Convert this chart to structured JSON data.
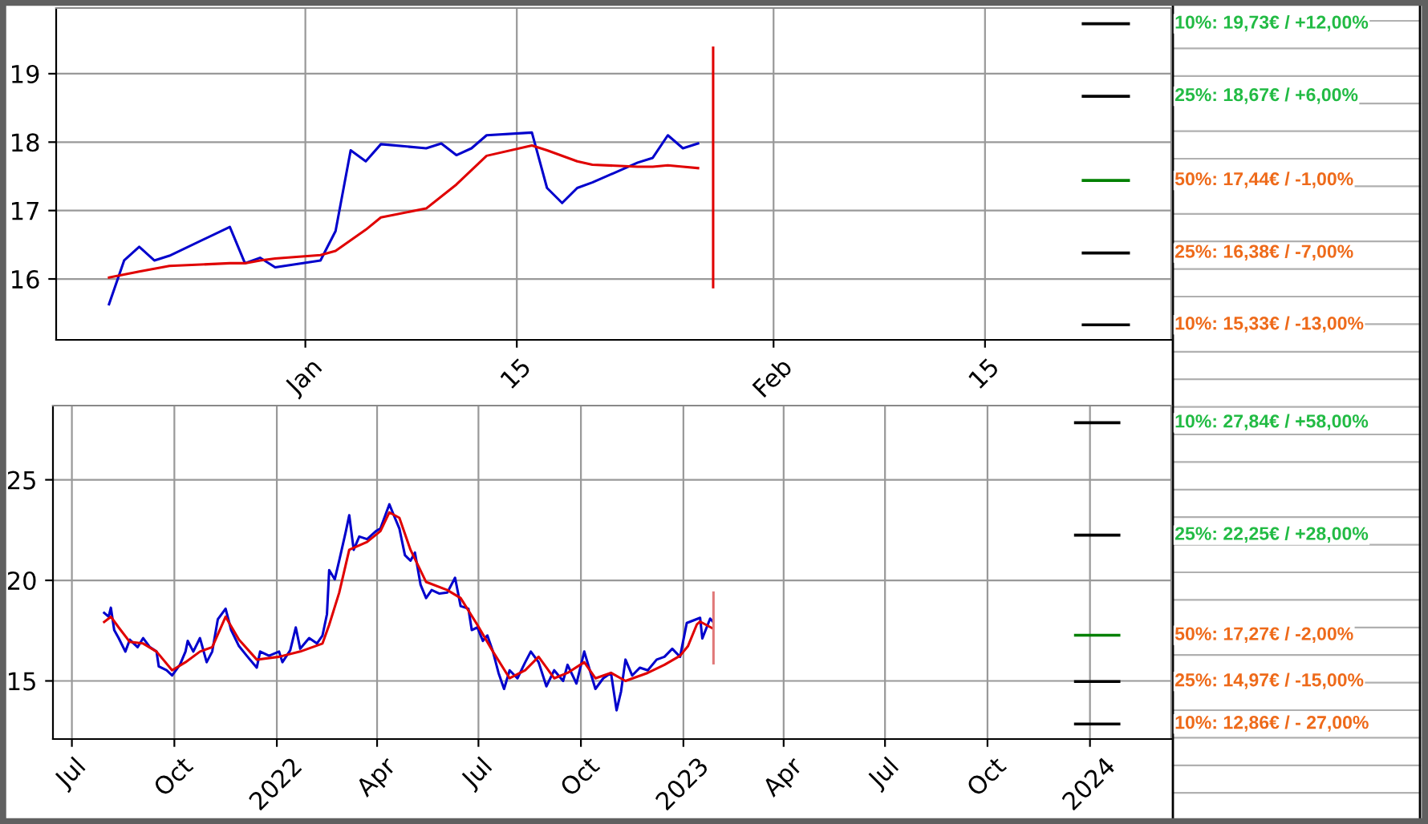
{
  "chart_data": [
    {
      "type": "line",
      "grid": true,
      "xlim": [
        "2022-12-15T12:00",
        "2023-02-27T08:00"
      ],
      "ylim": [
        15.11,
        19.96
      ],
      "yticks": [
        16,
        17,
        18,
        19
      ],
      "xticks": [
        {
          "value": "2023-01-01",
          "label": "Jan"
        },
        {
          "value": "2023-01-15",
          "label": "15"
        },
        {
          "value": "2023-02-01",
          "label": "Feb"
        },
        {
          "value": "2023-02-15",
          "label": "15"
        }
      ],
      "series": [
        {
          "color": "#0000cc",
          "x": [
            "2022-12-19",
            "2022-12-20",
            "2022-12-21",
            "2022-12-22",
            "2022-12-23",
            "2022-12-27",
            "2022-12-28",
            "2022-12-29",
            "2022-12-30",
            "2023-01-02",
            "2023-01-03",
            "2023-01-04",
            "2023-01-05",
            "2023-01-06",
            "2023-01-09",
            "2023-01-10",
            "2023-01-11",
            "2023-01-12",
            "2023-01-13",
            "2023-01-16",
            "2023-01-17",
            "2023-01-18",
            "2023-01-19",
            "2023-01-20",
            "2023-01-23",
            "2023-01-24",
            "2023-01-25",
            "2023-01-26",
            "2023-01-27"
          ],
          "values": [
            15.63,
            16.27,
            16.47,
            16.27,
            16.34,
            16.76,
            16.23,
            16.31,
            16.17,
            16.27,
            16.7,
            17.88,
            17.72,
            17.97,
            17.91,
            17.98,
            17.81,
            17.91,
            18.1,
            18.14,
            17.33,
            17.11,
            17.33,
            17.41,
            17.7,
            17.77,
            18.1,
            17.91,
            17.98
          ]
        },
        {
          "color": "#e00000",
          "x": [
            "2022-12-19",
            "2022-12-21",
            "2022-12-22",
            "2022-12-23",
            "2022-12-27",
            "2022-12-28",
            "2022-12-29",
            "2022-12-30",
            "2023-01-02",
            "2023-01-03",
            "2023-01-05",
            "2023-01-06",
            "2023-01-09",
            "2023-01-11",
            "2023-01-13",
            "2023-01-16",
            "2023-01-17",
            "2023-01-19",
            "2023-01-20",
            "2023-01-23",
            "2023-01-24",
            "2023-01-25",
            "2023-01-26",
            "2023-01-27"
          ],
          "values": [
            16.02,
            16.11,
            16.15,
            16.19,
            16.23,
            16.23,
            16.27,
            16.3,
            16.35,
            16.41,
            16.72,
            16.9,
            17.03,
            17.38,
            17.8,
            17.95,
            17.88,
            17.72,
            17.67,
            17.64,
            17.64,
            17.66,
            17.64,
            17.62
          ]
        },
        {
          "color": "#e00000",
          "x": [
            "2023-01-28",
            "2023-01-28"
          ],
          "values": [
            15.88,
            19.38
          ]
        },
        {
          "color": "#000000",
          "x": [
            "2023-02-21T12:00",
            "2023-02-24T12:00"
          ],
          "values": [
            19.73,
            19.73
          ]
        },
        {
          "color": "#000000",
          "x": [
            "2023-02-21T12:00",
            "2023-02-24T12:00"
          ],
          "values": [
            18.67,
            18.67
          ]
        },
        {
          "color": "#008000",
          "x": [
            "2023-02-21T12:00",
            "2023-02-24T12:00"
          ],
          "values": [
            17.44,
            17.44
          ]
        },
        {
          "color": "#000000",
          "x": [
            "2023-02-21T12:00",
            "2023-02-24T12:00"
          ],
          "values": [
            16.38,
            16.38
          ]
        },
        {
          "color": "#000000",
          "x": [
            "2023-02-21T12:00",
            "2023-02-24T12:00"
          ],
          "values": [
            15.33,
            15.33
          ]
        }
      ],
      "annotations": [
        "10%: 19,73€ / +12,00%",
        "25%: 18,67€ / +6,00%",
        "50%: 17,44€ / -1,00%",
        "25%: 16,38€ / -7,00%",
        "10%: 15,33€ / -13,00%"
      ]
    },
    {
      "type": "line",
      "grid": true,
      "xlim": [
        "2021-06-14",
        "2024-03-14"
      ],
      "ylim": [
        12.11,
        28.69
      ],
      "yticks": [
        15,
        20,
        25
      ],
      "xticks": [
        {
          "value": "2021-07-01",
          "label": "Jul"
        },
        {
          "value": "2021-10-01",
          "label": "Oct"
        },
        {
          "value": "2022-01-01",
          "label": "2022"
        },
        {
          "value": "2022-04-01",
          "label": "Apr"
        },
        {
          "value": "2022-07-01",
          "label": "Jul"
        },
        {
          "value": "2022-10-01",
          "label": "Oct"
        },
        {
          "value": "2023-01-01",
          "label": "2023"
        },
        {
          "value": "2023-04-01",
          "label": "Apr"
        },
        {
          "value": "2023-07-01",
          "label": "Jul"
        },
        {
          "value": "2023-10-01",
          "label": "Oct"
        },
        {
          "value": "2024-01-01",
          "label": "2024"
        }
      ],
      "series": [
        {
          "color": "#0000cc",
          "x": [
            "2021-07-30",
            "2021-08-03",
            "2021-08-05",
            "2021-08-08",
            "2021-08-12",
            "2021-08-18",
            "2021-08-22",
            "2021-08-29",
            "2021-09-03",
            "2021-09-09",
            "2021-09-15",
            "2021-09-17",
            "2021-09-24",
            "2021-09-29",
            "2021-10-06",
            "2021-10-11",
            "2021-10-13",
            "2021-10-18",
            "2021-10-24",
            "2021-10-30",
            "2021-11-04",
            "2021-11-09",
            "2021-11-16",
            "2021-11-21",
            "2021-11-28",
            "2021-12-05",
            "2021-12-14",
            "2021-12-17",
            "2021-12-25",
            "2022-01-03",
            "2022-01-06",
            "2022-01-13",
            "2022-01-18",
            "2022-01-22",
            "2022-01-30",
            "2022-02-06",
            "2022-02-11",
            "2022-02-15",
            "2022-02-17",
            "2022-02-22",
            "2022-02-26",
            "2022-03-04",
            "2022-03-07",
            "2022-03-11",
            "2022-03-16",
            "2022-03-23",
            "2022-03-31",
            "2022-04-04",
            "2022-04-12",
            "2022-04-16",
            "2022-04-21",
            "2022-04-26",
            "2022-05-01",
            "2022-05-05",
            "2022-05-10",
            "2022-05-15",
            "2022-05-20",
            "2022-05-27",
            "2022-06-03",
            "2022-06-10",
            "2022-06-15",
            "2022-06-22",
            "2022-06-25",
            "2022-06-30",
            "2022-07-05",
            "2022-07-09",
            "2022-07-14",
            "2022-07-19",
            "2022-07-24",
            "2022-07-29",
            "2022-08-05",
            "2022-08-12",
            "2022-08-17",
            "2022-08-24",
            "2022-08-31",
            "2022-09-07",
            "2022-09-15",
            "2022-09-19",
            "2022-09-27",
            "2022-10-04",
            "2022-10-09",
            "2022-10-14",
            "2022-10-21",
            "2022-10-28",
            "2022-11-02",
            "2022-11-06",
            "2022-11-10",
            "2022-11-16",
            "2022-11-23",
            "2022-11-30",
            "2022-12-08",
            "2022-12-15",
            "2022-12-22",
            "2022-12-29",
            "2023-01-04",
            "2023-01-16",
            "2023-01-18",
            "2023-01-25",
            "2023-01-27"
          ],
          "values": [
            18.38,
            18.19,
            18.64,
            17.53,
            17.13,
            16.46,
            17.05,
            16.68,
            17.13,
            16.68,
            16.46,
            15.72,
            15.53,
            15.27,
            15.8,
            16.46,
            16.99,
            16.46,
            17.13,
            15.93,
            16.46,
            18.06,
            18.59,
            17.53,
            16.73,
            16.25,
            15.66,
            16.46,
            16.25,
            16.46,
            15.93,
            16.52,
            17.66,
            16.6,
            17.13,
            16.86,
            17.26,
            18.32,
            20.51,
            20.05,
            20.98,
            22.45,
            23.24,
            21.52,
            22.18,
            22.05,
            22.45,
            22.58,
            23.78,
            23.24,
            22.58,
            21.25,
            20.98,
            21.38,
            19.79,
            19.12,
            19.52,
            19.34,
            19.39,
            20.13,
            18.72,
            18.59,
            17.53,
            17.66,
            16.99,
            17.26,
            16.46,
            15.4,
            14.6,
            15.53,
            15.13,
            15.93,
            16.46,
            15.93,
            14.73,
            15.53,
            15.0,
            15.8,
            14.87,
            16.46,
            15.53,
            14.6,
            15.13,
            15.4,
            13.54,
            14.47,
            16.06,
            15.27,
            15.66,
            15.53,
            16.06,
            16.2,
            16.6,
            16.2,
            17.88,
            18.14,
            17.11,
            18.1,
            17.98
          ]
        },
        {
          "color": "#e00000",
          "x": [
            "2021-07-30",
            "2021-08-05",
            "2021-08-12",
            "2021-08-22",
            "2021-09-03",
            "2021-09-15",
            "2021-09-29",
            "2021-10-11",
            "2021-10-24",
            "2021-11-04",
            "2021-11-16",
            "2021-11-28",
            "2021-12-14",
            "2022-01-03",
            "2022-01-22",
            "2022-02-11",
            "2022-02-17",
            "2022-02-26",
            "2022-03-07",
            "2022-03-23",
            "2022-04-04",
            "2022-04-12",
            "2022-04-21",
            "2022-05-01",
            "2022-05-15",
            "2022-06-03",
            "2022-06-15",
            "2022-06-30",
            "2022-07-14",
            "2022-07-29",
            "2022-08-12",
            "2022-08-24",
            "2022-09-07",
            "2022-09-19",
            "2022-10-04",
            "2022-10-14",
            "2022-10-28",
            "2022-11-10",
            "2022-11-30",
            "2022-12-15",
            "2022-12-29",
            "2023-01-05",
            "2023-01-13",
            "2023-01-16",
            "2023-01-27"
          ],
          "values": [
            17.93,
            18.19,
            17.66,
            16.94,
            16.86,
            16.46,
            15.53,
            15.93,
            16.46,
            16.68,
            18.19,
            17.05,
            16.06,
            16.2,
            16.46,
            16.86,
            17.79,
            19.39,
            21.52,
            21.91,
            22.45,
            23.38,
            23.11,
            21.52,
            19.92,
            19.52,
            19.12,
            17.79,
            16.46,
            15.13,
            15.53,
            16.2,
            15.13,
            15.4,
            15.93,
            15.13,
            15.4,
            15.0,
            15.4,
            15.8,
            16.25,
            16.72,
            17.8,
            17.95,
            17.62
          ]
        },
        {
          "color": "#e07878",
          "x": [
            "2023-01-28",
            "2023-01-28"
          ],
          "values": [
            15.88,
            19.39
          ]
        },
        {
          "color": "#000000",
          "x": [
            "2023-12-19",
            "2024-01-27"
          ],
          "values": [
            27.84,
            27.84
          ]
        },
        {
          "color": "#000000",
          "x": [
            "2023-12-19",
            "2024-01-27"
          ],
          "values": [
            22.25,
            22.25
          ]
        },
        {
          "color": "#008000",
          "x": [
            "2023-12-19",
            "2024-01-27"
          ],
          "values": [
            17.27,
            17.27
          ]
        },
        {
          "color": "#000000",
          "x": [
            "2023-12-19",
            "2024-01-27"
          ],
          "values": [
            14.97,
            14.97
          ]
        },
        {
          "color": "#000000",
          "x": [
            "2023-12-19",
            "2024-01-27"
          ],
          "values": [
            12.86,
            12.86
          ]
        }
      ],
      "annotations": [
        "10%: 27,84€ / +58,00%",
        "25%: 22,25€ / +28,00%",
        "50%: 17,27€ / -2,00%",
        "25%: 14,97€ / -15,00%",
        "10%: 12,86€ / - 27,00%"
      ]
    }
  ]
}
